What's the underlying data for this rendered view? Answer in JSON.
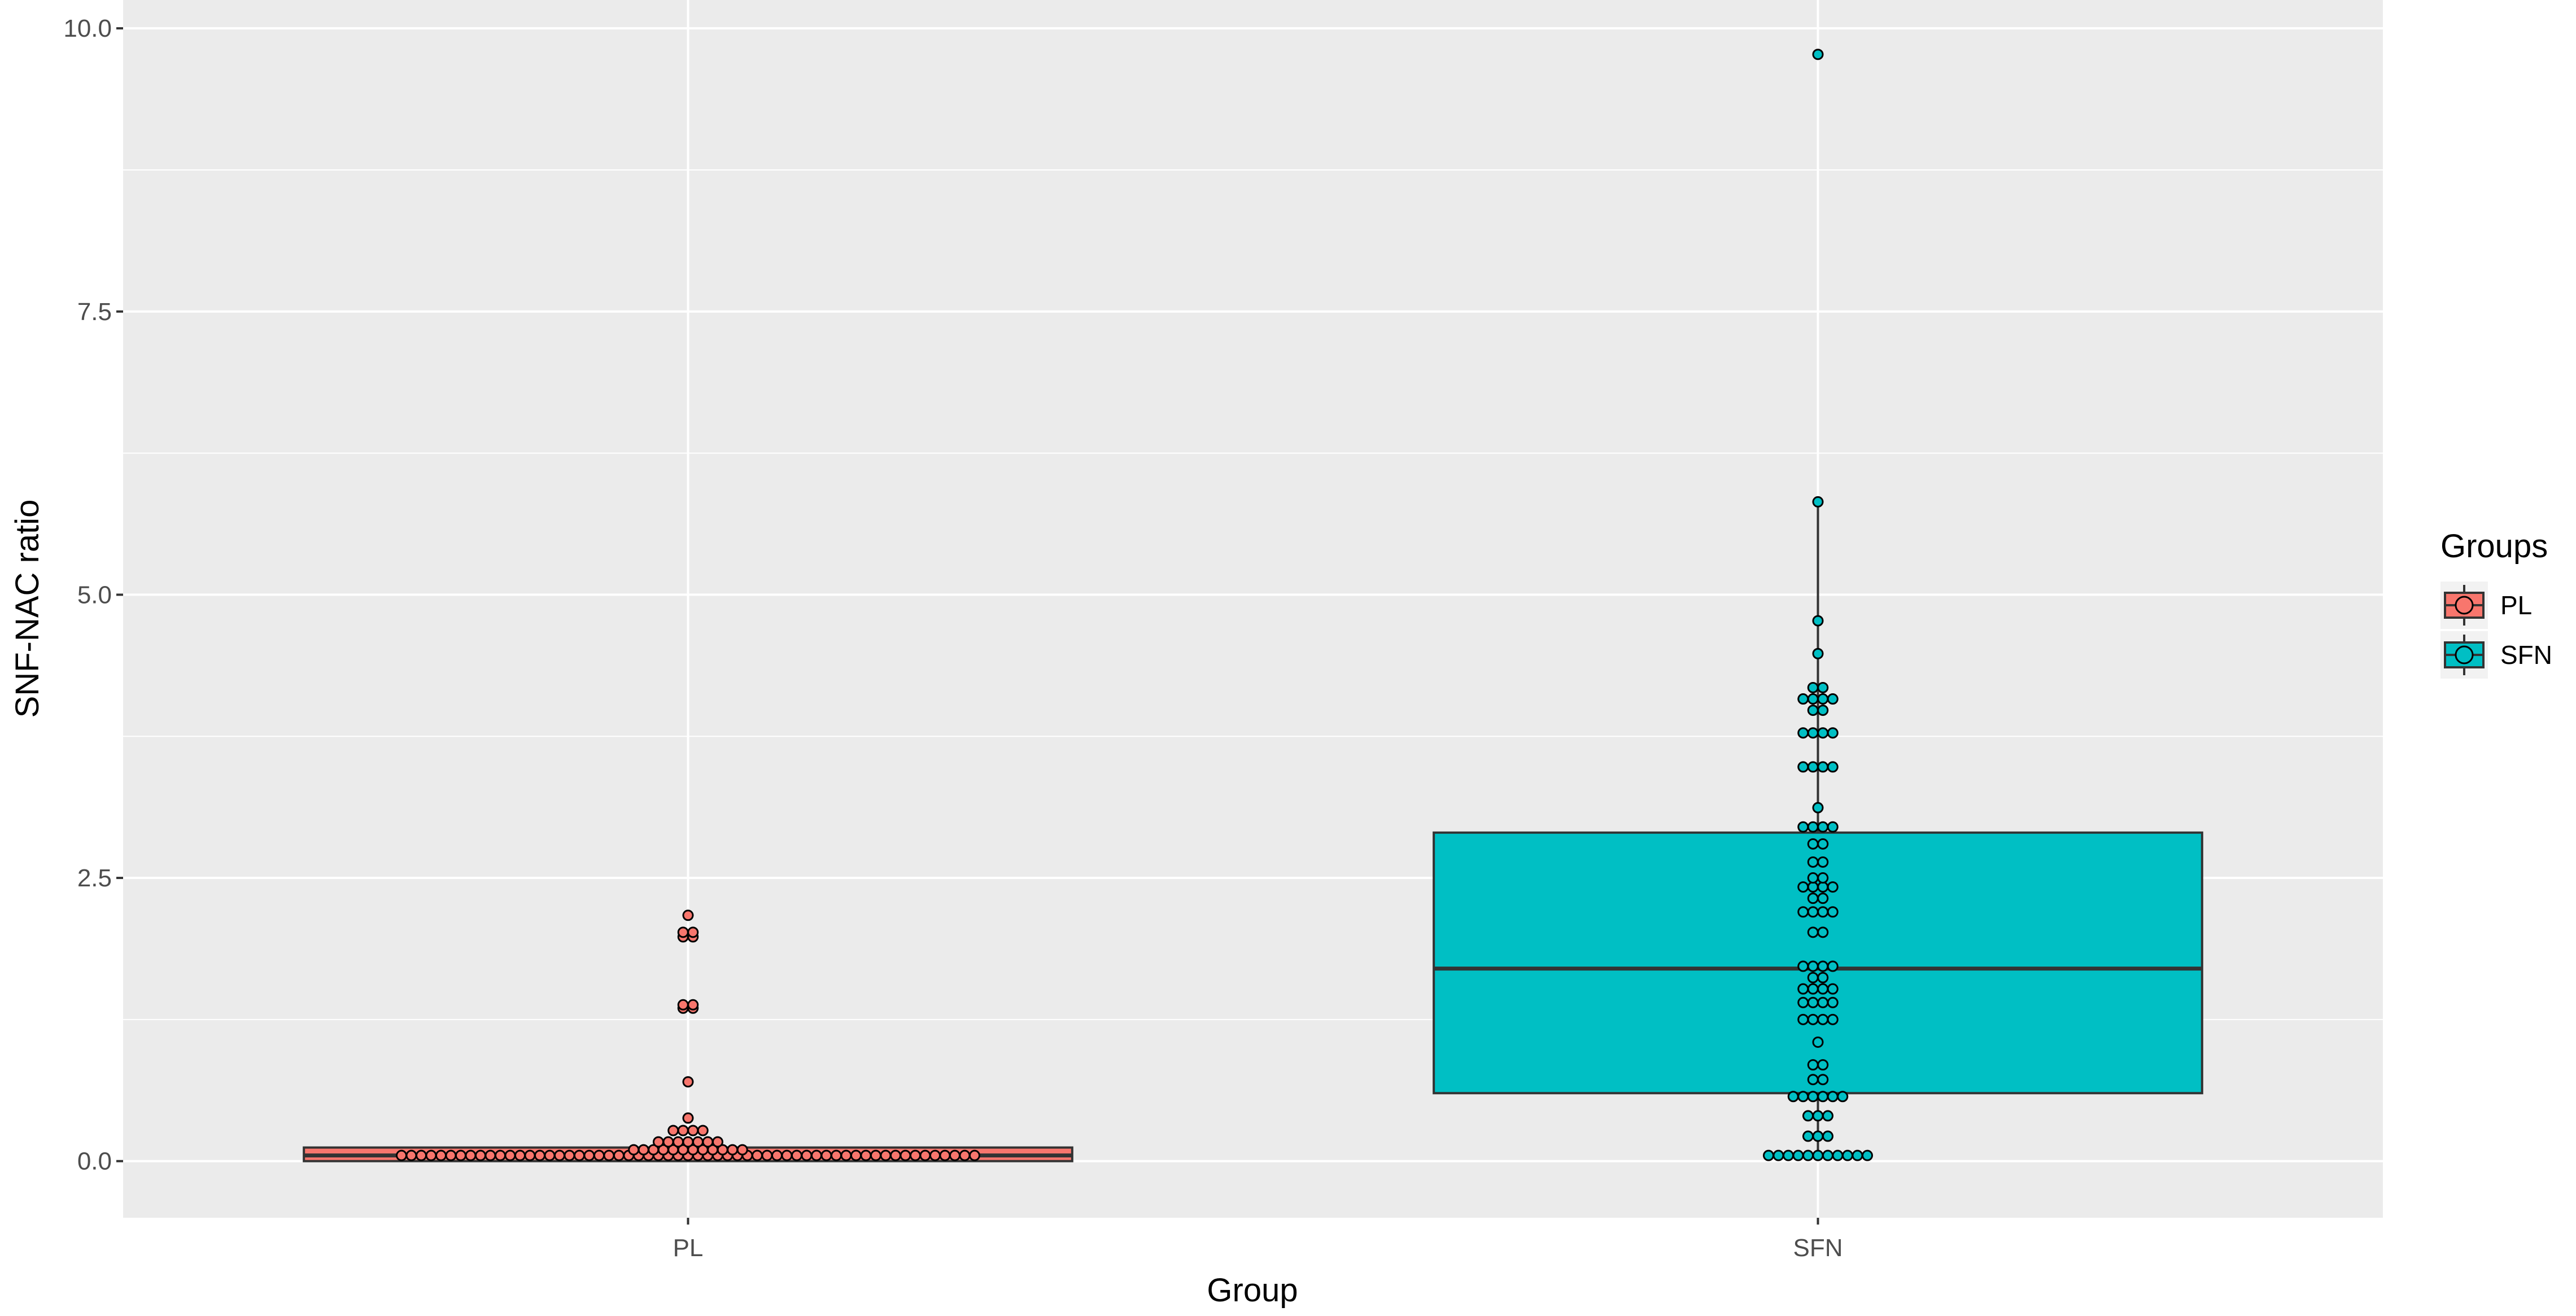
{
  "chart_data": {
    "type": "boxplot",
    "xlabel": "Group",
    "ylabel": "SNF-NAC ratio",
    "ylim": [
      -0.5,
      10.25
    ],
    "yticks": [
      0.0,
      2.5,
      5.0,
      7.5,
      10.0
    ],
    "ytick_labels": [
      "0.0",
      "2.5",
      "5.0",
      "7.5",
      "10.0"
    ],
    "grid": true,
    "background": "#ebebeb",
    "legend": {
      "title": "Groups",
      "position": "right",
      "entries": [
        {
          "label": "PL",
          "color": "#f8766d"
        },
        {
          "label": "SFN",
          "color": "#00bfc4"
        }
      ]
    },
    "categories": [
      "PL",
      "SFN"
    ],
    "groups": [
      {
        "name": "PL",
        "color": "#f8766d",
        "box": {
          "q1": 0.0,
          "median": 0.05,
          "q3": 0.12,
          "whisker_low": 0.0,
          "whisker_high": 0.12
        },
        "points": [
          {
            "y": 0.05,
            "n": 59
          },
          {
            "y": 0.1,
            "n": 12
          },
          {
            "y": 0.17,
            "n": 7
          },
          {
            "y": 0.27,
            "n": 4
          },
          {
            "y": 0.38,
            "n": 1
          },
          {
            "y": 0.7,
            "n": 1
          },
          {
            "y": 1.35,
            "n": 2
          },
          {
            "y": 1.38,
            "n": 2
          },
          {
            "y": 1.98,
            "n": 2
          },
          {
            "y": 2.02,
            "n": 2
          },
          {
            "y": 2.17,
            "n": 1
          }
        ]
      },
      {
        "name": "SFN",
        "color": "#00bfc4",
        "box": {
          "q1": 0.6,
          "median": 1.7,
          "q3": 2.9,
          "whisker_low": 0.05,
          "whisker_high": 5.82
        },
        "points": [
          {
            "y": 0.05,
            "n": 11
          },
          {
            "y": 0.22,
            "n": 3
          },
          {
            "y": 0.4,
            "n": 3
          },
          {
            "y": 0.57,
            "n": 6
          },
          {
            "y": 0.72,
            "n": 2
          },
          {
            "y": 0.85,
            "n": 2
          },
          {
            "y": 1.05,
            "n": 1
          },
          {
            "y": 1.25,
            "n": 4
          },
          {
            "y": 1.4,
            "n": 4
          },
          {
            "y": 1.52,
            "n": 4
          },
          {
            "y": 1.62,
            "n": 2
          },
          {
            "y": 1.72,
            "n": 4
          },
          {
            "y": 2.02,
            "n": 2
          },
          {
            "y": 2.2,
            "n": 4
          },
          {
            "y": 2.32,
            "n": 2
          },
          {
            "y": 2.42,
            "n": 4
          },
          {
            "y": 2.5,
            "n": 2
          },
          {
            "y": 2.64,
            "n": 2
          },
          {
            "y": 2.8,
            "n": 2
          },
          {
            "y": 2.95,
            "n": 4
          },
          {
            "y": 3.12,
            "n": 1
          },
          {
            "y": 3.48,
            "n": 4
          },
          {
            "y": 3.78,
            "n": 4
          },
          {
            "y": 3.98,
            "n": 2
          },
          {
            "y": 4.08,
            "n": 4
          },
          {
            "y": 4.18,
            "n": 2
          },
          {
            "y": 4.48,
            "n": 1
          },
          {
            "y": 4.77,
            "n": 1
          },
          {
            "y": 5.82,
            "n": 1
          },
          {
            "y": 9.77,
            "n": 1
          }
        ]
      }
    ]
  }
}
